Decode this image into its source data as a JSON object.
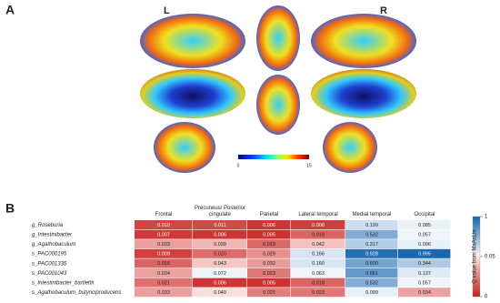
{
  "panel_labels": [
    "A",
    "B"
  ],
  "brain_panel": {
    "left_label": "L",
    "right_label": "R",
    "colorbar": {
      "lim": [
        0,
        15
      ],
      "ticks": [
        0,
        15
      ]
    }
  },
  "chart_data": {
    "type": "heatmap",
    "columns": [
      "Frontal",
      "Precuneus/ Posterior cingulate",
      "Parietal",
      "Lateral temporal",
      "Medial temporal",
      "Occipital"
    ],
    "rows": [
      "g_Roseburia",
      "g_Intestinibacter",
      "g_Agathobaculum",
      "s_PAC000195",
      "s_PAC001335",
      "s_PAC001043",
      "s_Intestinibacter_bartlettii",
      "s_Agathobaculum_butyriciproducens"
    ],
    "values": [
      [
        0.01,
        0.011,
        0.006,
        0.008,
        0.199,
        0.085
      ],
      [
        0.007,
        0.006,
        0.005,
        0.018,
        0.532,
        0.057
      ],
      [
        0.033,
        0.039,
        0.019,
        0.042,
        0.317,
        0.096
      ],
      [
        0.009,
        0.02,
        0.029,
        0.166,
        0.928,
        0.995
      ],
      [
        0.018,
        0.043,
        0.032,
        0.16,
        0.6,
        0.344
      ],
      [
        0.034,
        0.072,
        0.023,
        0.063,
        0.661,
        0.137
      ],
      [
        0.021,
        0.006,
        0.005,
        0.018,
        0.532,
        0.057
      ],
      [
        0.033,
        0.049,
        0.025,
        0.023,
        0.099,
        0.034
      ]
    ],
    "value_labels": [
      [
        "0.010",
        "0.011",
        "0.006",
        "0.008",
        "0.199",
        "0.085"
      ],
      [
        "0.007",
        "0.006",
        "0.005",
        "0.018",
        "0.532",
        "0.057"
      ],
      [
        "0.033",
        "0.039",
        "0.019",
        "0.042",
        "0.317",
        "0.096"
      ],
      [
        "0.009",
        "0.020",
        "0.029",
        "0.166",
        "0.928",
        "0.995"
      ],
      [
        "0.018",
        "0.043",
        "0.032",
        "0.160",
        "0.600",
        "0.344"
      ],
      [
        "0.034",
        "0.072",
        "0.023",
        "0.063",
        "0.661",
        "0.137"
      ],
      [
        "0.021",
        "0.006",
        "0.005",
        "0.018",
        "0.532",
        "0.057"
      ],
      [
        "0.033",
        "0.049",
        "0.025",
        "0.023",
        "0.099",
        "0.034"
      ]
    ],
    "colorbar": {
      "label": "Q value from MaAsLin",
      "ticks": [
        0,
        0.05,
        1
      ]
    }
  }
}
